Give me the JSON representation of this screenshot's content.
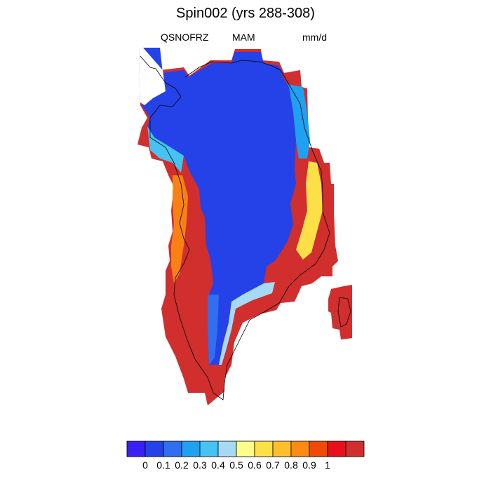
{
  "title": "Spin002 (yrs 288-308)",
  "subtitle_left": "QSNOFRZ",
  "subtitle_center": "MAM",
  "subtitle_right": "mm/d",
  "colorbar": {
    "colors": [
      "#3a1ff5",
      "#2442e8",
      "#2f6ff0",
      "#1da1f0",
      "#45c3f2",
      "#a6daf4",
      "#fdfd8a",
      "#fde048",
      "#fdc02a",
      "#fd8a12",
      "#f04a0a",
      "#e8101a",
      "#d12e2e"
    ],
    "labels": [
      "0",
      "0.1",
      "0.2",
      "0.3",
      "0.4",
      "0.5",
      "0.6",
      "0.7",
      "0.8",
      "0.9",
      "1"
    ]
  },
  "map_data": {
    "field": "QSNOFRZ",
    "season": "MAM",
    "units": "mm/d",
    "interior_value": 0.1,
    "southern_value": 1.0
  }
}
